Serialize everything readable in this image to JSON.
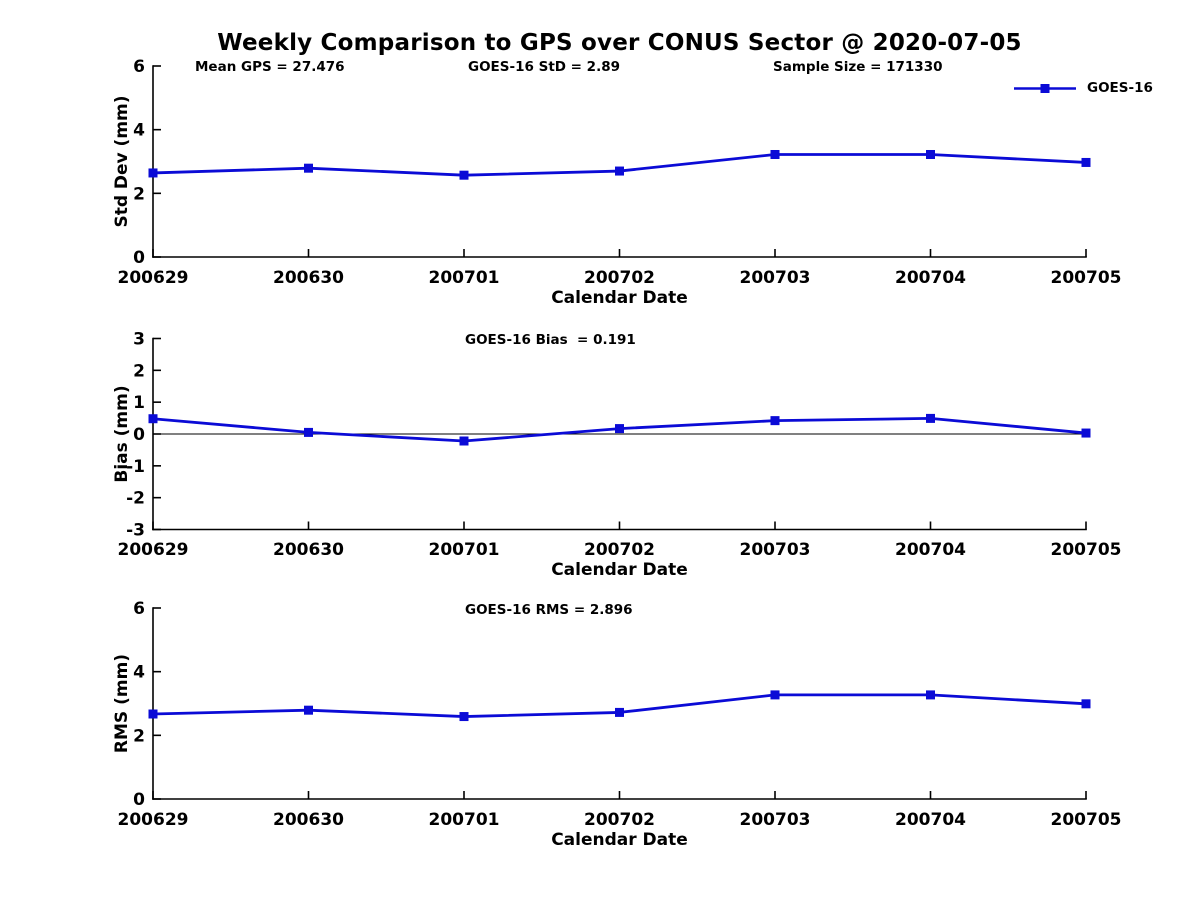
{
  "figure": {
    "title": "Weekly Comparison to GPS over CONUS Sector @ 2020-07-05",
    "background": "#ffffff"
  },
  "colors": {
    "line": "#0b0bd6",
    "axis": "#000000",
    "text": "#000000"
  },
  "legend": {
    "label": "GOES-16",
    "marker": "filled-square",
    "position": "top-right"
  },
  "chart_data": [
    {
      "id": "std-dev",
      "type": "line",
      "series_name": "GOES-16",
      "categories": [
        "200629",
        "200630",
        "200701",
        "200702",
        "200703",
        "200704",
        "200705"
      ],
      "values": [
        2.64,
        2.79,
        2.57,
        2.7,
        3.22,
        3.22,
        2.97
      ],
      "xlabel": "Calendar Date",
      "ylabel": "Std Dev (mm)",
      "ylim": [
        0,
        6
      ],
      "yticks": [
        0,
        2,
        4,
        6
      ],
      "zero_line": false,
      "grid": false,
      "annotations": [
        {
          "text": "Mean GPS = 27.476"
        },
        {
          "text": "GOES-16 StD = 2.89"
        },
        {
          "text": "Sample Size = 171330"
        }
      ]
    },
    {
      "id": "bias",
      "type": "line",
      "series_name": "GOES-16",
      "categories": [
        "200629",
        "200630",
        "200701",
        "200702",
        "200703",
        "200704",
        "200705"
      ],
      "values": [
        0.48,
        0.05,
        -0.22,
        0.17,
        0.42,
        0.49,
        0.03
      ],
      "xlabel": "Calendar Date",
      "ylabel": "Bias (mm)",
      "ylim": [
        -3,
        3
      ],
      "yticks": [
        -3,
        -2,
        -1,
        0,
        1,
        2,
        3
      ],
      "zero_line": true,
      "grid": false,
      "annotations": [
        {
          "text": "GOES-16 Bias  = 0.191"
        }
      ]
    },
    {
      "id": "rms",
      "type": "line",
      "series_name": "GOES-16",
      "categories": [
        "200629",
        "200630",
        "200701",
        "200702",
        "200703",
        "200704",
        "200705"
      ],
      "values": [
        2.67,
        2.79,
        2.59,
        2.72,
        3.27,
        3.27,
        2.99
      ],
      "xlabel": "Calendar Date",
      "ylabel": "RMS (mm)",
      "ylim": [
        0,
        6
      ],
      "yticks": [
        0,
        2,
        4,
        6
      ],
      "zero_line": false,
      "grid": false,
      "annotations": [
        {
          "text": "GOES-16 RMS = 2.896"
        }
      ]
    }
  ]
}
